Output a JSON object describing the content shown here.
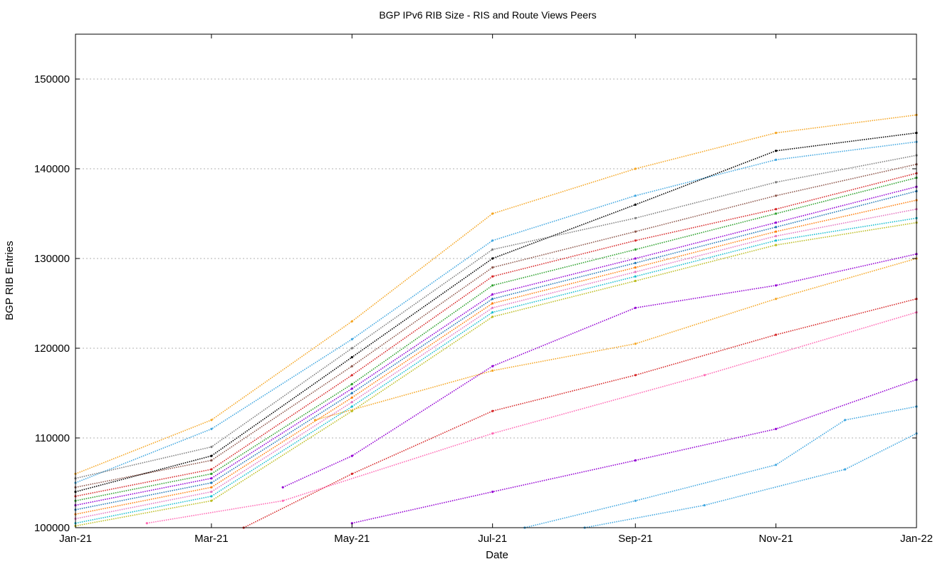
{
  "chart_data": {
    "type": "scatter",
    "title": "BGP IPv6 RIB Size - RIS and Route Views Peers",
    "xlabel": "Date",
    "ylabel": "BGP RIB Entries",
    "x_range": [
      "2021-01-01",
      "2022-01-01"
    ],
    "ylim": [
      100000,
      155000
    ],
    "x_ticks": [
      {
        "label": "Jan-21",
        "date": "2021-01-01"
      },
      {
        "label": "Mar-21",
        "date": "2021-03-01"
      },
      {
        "label": "May-21",
        "date": "2021-05-01"
      },
      {
        "label": "Jul-21",
        "date": "2021-07-01"
      },
      {
        "label": "Sep-21",
        "date": "2021-09-01"
      },
      {
        "label": "Nov-21",
        "date": "2021-11-01"
      },
      {
        "label": "Jan-22",
        "date": "2022-01-01"
      }
    ],
    "y_ticks": [
      100000,
      110000,
      120000,
      130000,
      140000,
      150000
    ],
    "grid": "horizontal dashed",
    "series": [
      {
        "color": "#f5a623",
        "points": [
          [
            "2021-01-01",
            106000
          ],
          [
            "2021-03-01",
            112000
          ],
          [
            "2021-05-01",
            123000
          ],
          [
            "2021-07-01",
            135000
          ],
          [
            "2021-09-01",
            140000
          ],
          [
            "2021-11-01",
            144000
          ],
          [
            "2022-01-01",
            146000
          ]
        ]
      },
      {
        "color": "#41a7e0",
        "points": [
          [
            "2021-01-01",
            105000
          ],
          [
            "2021-03-01",
            111000
          ],
          [
            "2021-05-01",
            121000
          ],
          [
            "2021-07-01",
            132000
          ],
          [
            "2021-09-01",
            137000
          ],
          [
            "2021-11-01",
            141000
          ],
          [
            "2022-01-01",
            143000
          ]
        ]
      },
      {
        "color": "#000000",
        "points": [
          [
            "2021-01-01",
            104000
          ],
          [
            "2021-03-01",
            108000
          ],
          [
            "2021-05-01",
            119000
          ],
          [
            "2021-07-01",
            130000
          ],
          [
            "2021-09-01",
            136000
          ],
          [
            "2021-11-01",
            142000
          ],
          [
            "2022-01-01",
            144000
          ]
        ]
      },
      {
        "color": "#d62728",
        "points": [
          [
            "2021-01-01",
            103500
          ],
          [
            "2021-03-01",
            106500
          ],
          [
            "2021-05-01",
            117000
          ],
          [
            "2021-07-01",
            128000
          ],
          [
            "2021-09-01",
            132000
          ],
          [
            "2021-11-01",
            135500
          ],
          [
            "2022-01-01",
            139500
          ]
        ]
      },
      {
        "color": "#2ca02c",
        "points": [
          [
            "2021-01-01",
            103000
          ],
          [
            "2021-03-01",
            106000
          ],
          [
            "2021-05-01",
            116000
          ],
          [
            "2021-07-01",
            127000
          ],
          [
            "2021-09-01",
            131000
          ],
          [
            "2021-11-01",
            135000
          ],
          [
            "2022-01-01",
            139000
          ]
        ]
      },
      {
        "color": "#9400d3",
        "points": [
          [
            "2021-01-01",
            102500
          ],
          [
            "2021-03-01",
            105500
          ],
          [
            "2021-05-01",
            115500
          ],
          [
            "2021-07-01",
            126000
          ],
          [
            "2021-09-01",
            130000
          ],
          [
            "2021-11-01",
            134000
          ],
          [
            "2022-01-01",
            138000
          ]
        ]
      },
      {
        "color": "#1f77b4",
        "points": [
          [
            "2021-01-01",
            102000
          ],
          [
            "2021-03-01",
            105000
          ],
          [
            "2021-05-01",
            115000
          ],
          [
            "2021-07-01",
            125500
          ],
          [
            "2021-09-01",
            129500
          ],
          [
            "2021-11-01",
            133500
          ],
          [
            "2022-01-01",
            137500
          ]
        ]
      },
      {
        "color": "#ff7f0e",
        "points": [
          [
            "2021-01-01",
            101500
          ],
          [
            "2021-03-01",
            104500
          ],
          [
            "2021-05-01",
            114500
          ],
          [
            "2021-07-01",
            125000
          ],
          [
            "2021-09-01",
            129000
          ],
          [
            "2021-11-01",
            133000
          ],
          [
            "2022-01-01",
            136500
          ]
        ]
      },
      {
        "color": "#e377c2",
        "points": [
          [
            "2021-01-01",
            101000
          ],
          [
            "2021-03-01",
            104000
          ],
          [
            "2021-05-01",
            114000
          ],
          [
            "2021-07-01",
            124500
          ],
          [
            "2021-09-01",
            128500
          ],
          [
            "2021-11-01",
            132500
          ],
          [
            "2022-01-01",
            135500
          ]
        ]
      },
      {
        "color": "#17becf",
        "points": [
          [
            "2021-01-01",
            100500
          ],
          [
            "2021-03-01",
            103500
          ],
          [
            "2021-05-01",
            113500
          ],
          [
            "2021-07-01",
            124000
          ],
          [
            "2021-09-01",
            128000
          ],
          [
            "2021-11-01",
            132000
          ],
          [
            "2022-01-01",
            134500
          ]
        ]
      },
      {
        "color": "#bcbd22",
        "points": [
          [
            "2021-01-01",
            100200
          ],
          [
            "2021-03-01",
            103000
          ],
          [
            "2021-05-01",
            113000
          ],
          [
            "2021-07-01",
            123500
          ],
          [
            "2021-09-01",
            127500
          ],
          [
            "2021-11-01",
            131500
          ],
          [
            "2022-01-01",
            134000
          ]
        ]
      },
      {
        "color": "#8c564b",
        "points": [
          [
            "2021-01-01",
            104500
          ],
          [
            "2021-03-01",
            107500
          ],
          [
            "2021-05-01",
            118000
          ],
          [
            "2021-07-01",
            129000
          ],
          [
            "2021-09-01",
            133000
          ],
          [
            "2021-11-01",
            137000
          ],
          [
            "2022-01-01",
            140500
          ]
        ]
      },
      {
        "color": "#7f7f7f",
        "points": [
          [
            "2021-01-01",
            105500
          ],
          [
            "2021-03-01",
            109000
          ],
          [
            "2021-05-01",
            120000
          ],
          [
            "2021-07-01",
            131000
          ],
          [
            "2021-09-01",
            134500
          ],
          [
            "2021-11-01",
            138500
          ],
          [
            "2022-01-01",
            141500
          ]
        ]
      },
      {
        "color": "#d62728",
        "points": [
          [
            "2021-03-15",
            100000
          ],
          [
            "2021-05-01",
            106000
          ],
          [
            "2021-07-01",
            113000
          ],
          [
            "2021-09-01",
            117000
          ],
          [
            "2021-11-01",
            121500
          ],
          [
            "2022-01-01",
            125500
          ]
        ]
      },
      {
        "color": "#9400d3",
        "points": [
          [
            "2021-04-01",
            104500
          ],
          [
            "2021-05-01",
            108000
          ],
          [
            "2021-07-01",
            118000
          ],
          [
            "2021-09-01",
            124500
          ],
          [
            "2021-11-01",
            127000
          ],
          [
            "2022-01-01",
            130500
          ]
        ]
      },
      {
        "color": "#9400d3",
        "points": [
          [
            "2021-05-01",
            100500
          ],
          [
            "2021-07-01",
            104000
          ],
          [
            "2021-09-01",
            107500
          ],
          [
            "2021-11-01",
            111000
          ],
          [
            "2022-01-01",
            116500
          ]
        ]
      },
      {
        "color": "#41a7e0",
        "points": [
          [
            "2021-07-15",
            100000
          ],
          [
            "2021-09-01",
            103000
          ],
          [
            "2021-11-01",
            107000
          ],
          [
            "2021-12-01",
            112000
          ],
          [
            "2022-01-01",
            113500
          ]
        ]
      },
      {
        "color": "#41a7e0",
        "points": [
          [
            "2021-08-10",
            100000
          ],
          [
            "2021-10-01",
            102500
          ],
          [
            "2021-12-01",
            106500
          ],
          [
            "2022-01-01",
            110500
          ]
        ]
      },
      {
        "color": "#f5a623",
        "points": [
          [
            "2021-04-15",
            112000
          ],
          [
            "2021-07-01",
            117500
          ],
          [
            "2021-09-01",
            120500
          ],
          [
            "2021-11-01",
            125500
          ],
          [
            "2022-01-01",
            130000
          ]
        ]
      },
      {
        "color": "#ff69b4",
        "points": [
          [
            "2021-02-01",
            100500
          ],
          [
            "2021-04-01",
            103000
          ],
          [
            "2021-07-01",
            110500
          ],
          [
            "2021-10-01",
            117000
          ],
          [
            "2022-01-01",
            124000
          ]
        ]
      }
    ]
  }
}
